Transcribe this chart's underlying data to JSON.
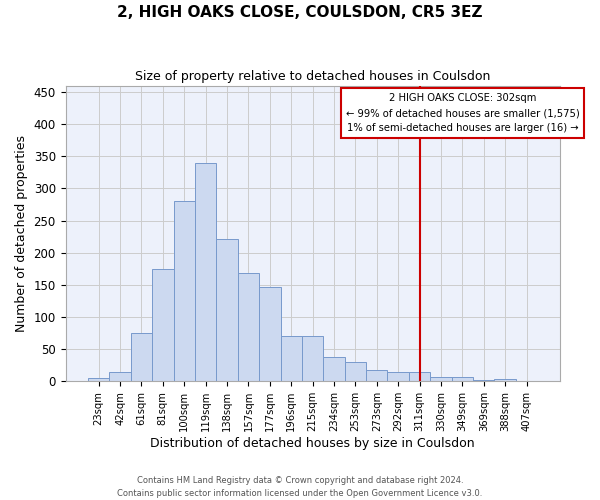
{
  "title": "2, HIGH OAKS CLOSE, COULSDON, CR5 3EZ",
  "subtitle": "Size of property relative to detached houses in Coulsdon",
  "xlabel": "Distribution of detached houses by size in Coulsdon",
  "ylabel": "Number of detached properties",
  "bar_labels": [
    "23sqm",
    "42sqm",
    "61sqm",
    "81sqm",
    "100sqm",
    "119sqm",
    "138sqm",
    "157sqm",
    "177sqm",
    "196sqm",
    "215sqm",
    "234sqm",
    "253sqm",
    "273sqm",
    "292sqm",
    "311sqm",
    "330sqm",
    "349sqm",
    "369sqm",
    "388sqm",
    "407sqm"
  ],
  "bar_heights": [
    5,
    14,
    75,
    175,
    280,
    340,
    222,
    168,
    146,
    70,
    70,
    38,
    30,
    18,
    15,
    15,
    7,
    7,
    2,
    3,
    0
  ],
  "bar_color": "#ccd9f0",
  "bar_edge_color": "#7799cc",
  "grid_color": "#cccccc",
  "background_color": "#edf1fb",
  "vline_color": "#cc0000",
  "vline_pos": 15.0,
  "annotation_text_line1": "2 HIGH OAKS CLOSE: 302sqm",
  "annotation_text_line2": "← 99% of detached houses are smaller (1,575)",
  "annotation_text_line3": "1% of semi-detached houses are larger (16) →",
  "annotation_box_color": "#cc0000",
  "annotation_box_bg": "#ffffff",
  "footer_text": "Contains HM Land Registry data © Crown copyright and database right 2024.\nContains public sector information licensed under the Open Government Licence v3.0.",
  "ylim": [
    0,
    460
  ],
  "yticks": [
    0,
    50,
    100,
    150,
    200,
    250,
    300,
    350,
    400,
    450
  ]
}
